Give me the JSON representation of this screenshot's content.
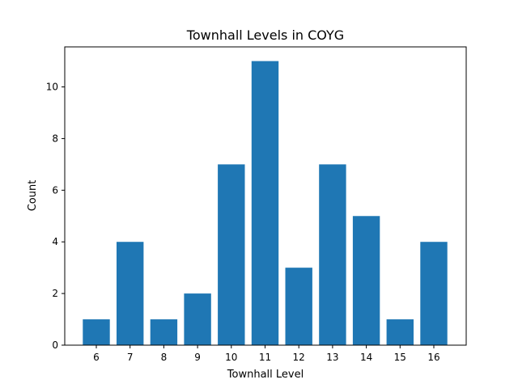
{
  "chart_data": {
    "type": "bar",
    "title": "Townhall Levels in COYG",
    "xlabel": "Townhall Level",
    "ylabel": "Count",
    "categories": [
      "6",
      "7",
      "8",
      "9",
      "10",
      "11",
      "12",
      "13",
      "14",
      "15",
      "16"
    ],
    "values": [
      1,
      4,
      1,
      2,
      7,
      11,
      3,
      7,
      5,
      1,
      4
    ],
    "ylim": [
      0,
      11.55
    ],
    "yticks": [
      0,
      2,
      4,
      6,
      8,
      10
    ],
    "grid": false,
    "bar_color": "#1f77b4"
  }
}
